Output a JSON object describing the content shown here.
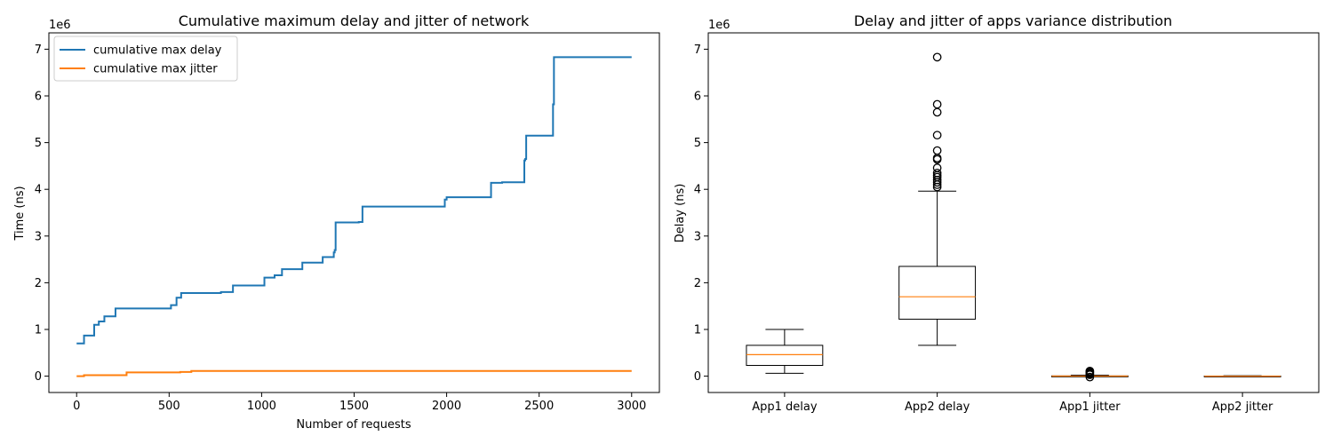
{
  "colors": {
    "delay": "#1f77b4",
    "jitter": "#ff7f0e",
    "axis": "#000000",
    "median": "#ff7f0e"
  },
  "chart_data": [
    {
      "type": "line",
      "title": "Cumulative maximum delay and jitter of network",
      "xlabel": "Number of requests",
      "ylabel": "Time (ns)",
      "y_offset_label": "1e6",
      "xlim": [
        -150,
        3150
      ],
      "ylim": [
        -350000,
        7350000
      ],
      "x_ticks": [
        0,
        500,
        1000,
        1500,
        2000,
        2500,
        3000
      ],
      "x_tick_labels": [
        "0",
        "500",
        "1000",
        "1500",
        "2000",
        "2500",
        "3000"
      ],
      "y_ticks": [
        0,
        1000000,
        2000000,
        3000000,
        4000000,
        5000000,
        6000000,
        7000000
      ],
      "y_tick_labels": [
        "0",
        "1",
        "2",
        "3",
        "4",
        "5",
        "6",
        "7"
      ],
      "grid": false,
      "legend_position": "top-left",
      "series": [
        {
          "name": "cumulative max delay",
          "color": "#1f77b4",
          "step": true,
          "x": [
            0,
            40,
            95,
            120,
            150,
            210,
            510,
            540,
            565,
            780,
            845,
            1015,
            1070,
            1110,
            1220,
            1330,
            1390,
            1395,
            1400,
            1525,
            1545,
            1990,
            2000,
            2240,
            2300,
            2420,
            2425,
            2430,
            2575,
            2580,
            3000
          ],
          "y": [
            700000,
            870000,
            1100000,
            1170000,
            1280000,
            1450000,
            1520000,
            1680000,
            1780000,
            1800000,
            1940000,
            2110000,
            2160000,
            2290000,
            2430000,
            2550000,
            2650000,
            2700000,
            3290000,
            3300000,
            3630000,
            3780000,
            3830000,
            4140000,
            4150000,
            4620000,
            4650000,
            5150000,
            5820000,
            6830000,
            6830000
          ]
        },
        {
          "name": "cumulative max jitter",
          "color": "#ff7f0e",
          "step": true,
          "x": [
            0,
            40,
            270,
            560,
            620,
            3000
          ],
          "y": [
            0,
            20000,
            80000,
            90000,
            110000,
            110000
          ]
        }
      ]
    },
    {
      "type": "box",
      "title": "Delay and jitter of apps variance distribution",
      "xlabel": "",
      "ylabel": "Delay (ns)",
      "y_offset_label": "1e6",
      "ylim": [
        -350000,
        7350000
      ],
      "y_ticks": [
        0,
        1000000,
        2000000,
        3000000,
        4000000,
        5000000,
        6000000,
        7000000
      ],
      "y_tick_labels": [
        "0",
        "1",
        "2",
        "3",
        "4",
        "5",
        "6",
        "7"
      ],
      "categories": [
        "App1 delay",
        "App2 delay",
        "App1 jitter",
        "App2 jitter"
      ],
      "boxes": [
        {
          "whisker_low": 60000,
          "q1": 230000,
          "median": 460000,
          "q3": 660000,
          "whisker_high": 1000000,
          "outliers": []
        },
        {
          "whisker_low": 660000,
          "q1": 1220000,
          "median": 1700000,
          "q3": 2350000,
          "whisker_high": 3960000,
          "outliers": [
            4050000,
            4100000,
            4150000,
            4200000,
            4260000,
            4300000,
            4350000,
            4460000,
            4640000,
            4670000,
            4830000,
            5160000,
            5650000,
            5820000,
            6830000
          ]
        },
        {
          "whisker_low": -5000,
          "q1": 0,
          "median": 2000,
          "q3": 5000,
          "whisker_high": 20000,
          "outliers": [
            30000,
            50000,
            70000,
            90000,
            110000,
            -20000
          ]
        },
        {
          "whisker_low": -10000,
          "q1": -3000,
          "median": 0,
          "q3": 3000,
          "whisker_high": 10000,
          "outliers": []
        }
      ]
    }
  ]
}
